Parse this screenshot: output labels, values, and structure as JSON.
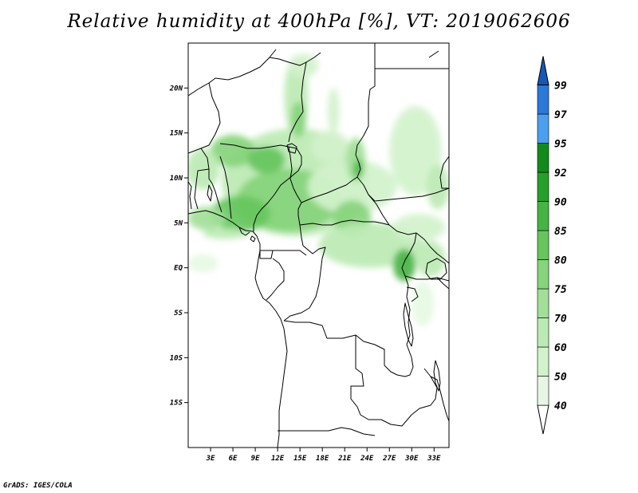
{
  "title": "Relative humidity at 400hPa [%], VT: 2019062606",
  "credit": "GrADS: IGES/COLA",
  "map": {
    "region": "Central & West Africa",
    "projection": "latlon",
    "lon_range": [
      0,
      35
    ],
    "lat_range": [
      -20,
      25
    ],
    "lat_ticks": [
      {
        "value": 20,
        "label": "20N"
      },
      {
        "value": 15,
        "label": "15N"
      },
      {
        "value": 10,
        "label": "10N"
      },
      {
        "value": 5,
        "label": "5N"
      },
      {
        "value": 0,
        "label": "EQ"
      },
      {
        "value": -5,
        "label": "5S"
      },
      {
        "value": -10,
        "label": "10S"
      },
      {
        "value": -15,
        "label": "15S"
      }
    ],
    "lon_ticks": [
      {
        "value": 3,
        "label": "3E"
      },
      {
        "value": 6,
        "label": "6E"
      },
      {
        "value": 9,
        "label": "9E"
      },
      {
        "value": 12,
        "label": "12E"
      },
      {
        "value": 15,
        "label": "15E"
      },
      {
        "value": 18,
        "label": "18E"
      },
      {
        "value": 21,
        "label": "21E"
      },
      {
        "value": 24,
        "label": "24E"
      },
      {
        "value": 27,
        "label": "27E"
      },
      {
        "value": 30,
        "label": "30E"
      },
      {
        "value": 33,
        "label": "33E"
      }
    ]
  },
  "colorbar": {
    "levels": [
      {
        "label": "40",
        "color": "#e6f8e3"
      },
      {
        "label": "50",
        "color": "#d2f2cc"
      },
      {
        "label": "60",
        "color": "#bceab4"
      },
      {
        "label": "70",
        "color": "#a2df98"
      },
      {
        "label": "75",
        "color": "#86d47b"
      },
      {
        "label": "80",
        "color": "#66c65d"
      },
      {
        "label": "85",
        "color": "#46b442"
      },
      {
        "label": "90",
        "color": "#25a02a"
      },
      {
        "label": "92",
        "color": "#128a1c"
      },
      {
        "label": "95",
        "color": "#4aa0ee"
      },
      {
        "label": "97",
        "color": "#2a78d8"
      },
      {
        "label": "99",
        "color": "#1558b8"
      }
    ],
    "below_color": "#ffffff",
    "above_color": "#1558b8"
  },
  "chart_data": {
    "type": "heatmap",
    "title": "Relative humidity at 400hPa [%], VT: 2019062606",
    "variable": "Relative humidity",
    "level": "400hPa",
    "units": "%",
    "valid_time": "2019062606",
    "x_range": [
      0,
      35
    ],
    "y_range": [
      -20,
      25
    ],
    "contour_levels": [
      40,
      50,
      60,
      70,
      75,
      80,
      85,
      90,
      92,
      95,
      97,
      99
    ],
    "humid_features": [
      {
        "lon": 14.5,
        "lat": 9.5,
        "rx": 10,
        "ry": 6,
        "value": 60
      },
      {
        "lon": 13.5,
        "lat": 7.5,
        "rx": 7,
        "ry": 3.5,
        "value": 75
      },
      {
        "lon": 7,
        "lat": 6,
        "rx": 4,
        "ry": 2,
        "value": 82
      },
      {
        "lon": 6,
        "lat": 13,
        "rx": 3,
        "ry": 1.8,
        "value": 78
      },
      {
        "lon": 10.5,
        "lat": 12,
        "rx": 2.5,
        "ry": 1.5,
        "value": 82
      },
      {
        "lon": 2.5,
        "lat": 5.5,
        "rx": 2.5,
        "ry": 1.3,
        "value": 72
      },
      {
        "lon": 5,
        "lat": 3.8,
        "rx": 3,
        "ry": 0.6,
        "value": 60
      },
      {
        "lon": 2,
        "lat": 11,
        "rx": 2.2,
        "ry": 2.3,
        "value": 65
      },
      {
        "lon": 14.5,
        "lat": 19,
        "rx": 1.6,
        "ry": 4.5,
        "value": 60
      },
      {
        "lon": 14.8,
        "lat": 16.5,
        "rx": 1,
        "ry": 2,
        "value": 75
      },
      {
        "lon": 15.5,
        "lat": 22.5,
        "rx": 2,
        "ry": 1.3,
        "value": 55
      },
      {
        "lon": 19.5,
        "lat": 17.5,
        "rx": 0.8,
        "ry": 2.5,
        "value": 50
      },
      {
        "lon": 19,
        "lat": 13.5,
        "rx": 2.5,
        "ry": 1.8,
        "value": 50
      },
      {
        "lon": 22,
        "lat": 9,
        "rx": 6,
        "ry": 3,
        "value": 55
      },
      {
        "lon": 22.5,
        "lat": 12,
        "rx": 1.3,
        "ry": 2.5,
        "value": 72
      },
      {
        "lon": 22.8,
        "lat": 11,
        "rx": 0.6,
        "ry": 1,
        "value": 88
      },
      {
        "lon": 22,
        "lat": 5.5,
        "rx": 2.5,
        "ry": 2,
        "value": 75
      },
      {
        "lon": 24.5,
        "lat": 2.5,
        "rx": 7,
        "ry": 2.5,
        "value": 62
      },
      {
        "lon": 29,
        "lat": 0.3,
        "rx": 1.5,
        "ry": 1.8,
        "value": 85
      },
      {
        "lon": 31,
        "lat": 4.5,
        "rx": 3.5,
        "ry": 1.5,
        "value": 55
      },
      {
        "lon": 30.5,
        "lat": 13,
        "rx": 3.5,
        "ry": 5,
        "value": 50
      },
      {
        "lon": 33.5,
        "lat": 9,
        "rx": 1.5,
        "ry": 2.5,
        "value": 60
      },
      {
        "lon": 32.5,
        "lat": 1,
        "rx": 2,
        "ry": 2,
        "value": 60
      },
      {
        "lon": 31.5,
        "lat": -4,
        "rx": 1.5,
        "ry": 2.5,
        "value": 45
      },
      {
        "lon": 2,
        "lat": 0.5,
        "rx": 2,
        "ry": 1,
        "value": 45
      }
    ]
  }
}
